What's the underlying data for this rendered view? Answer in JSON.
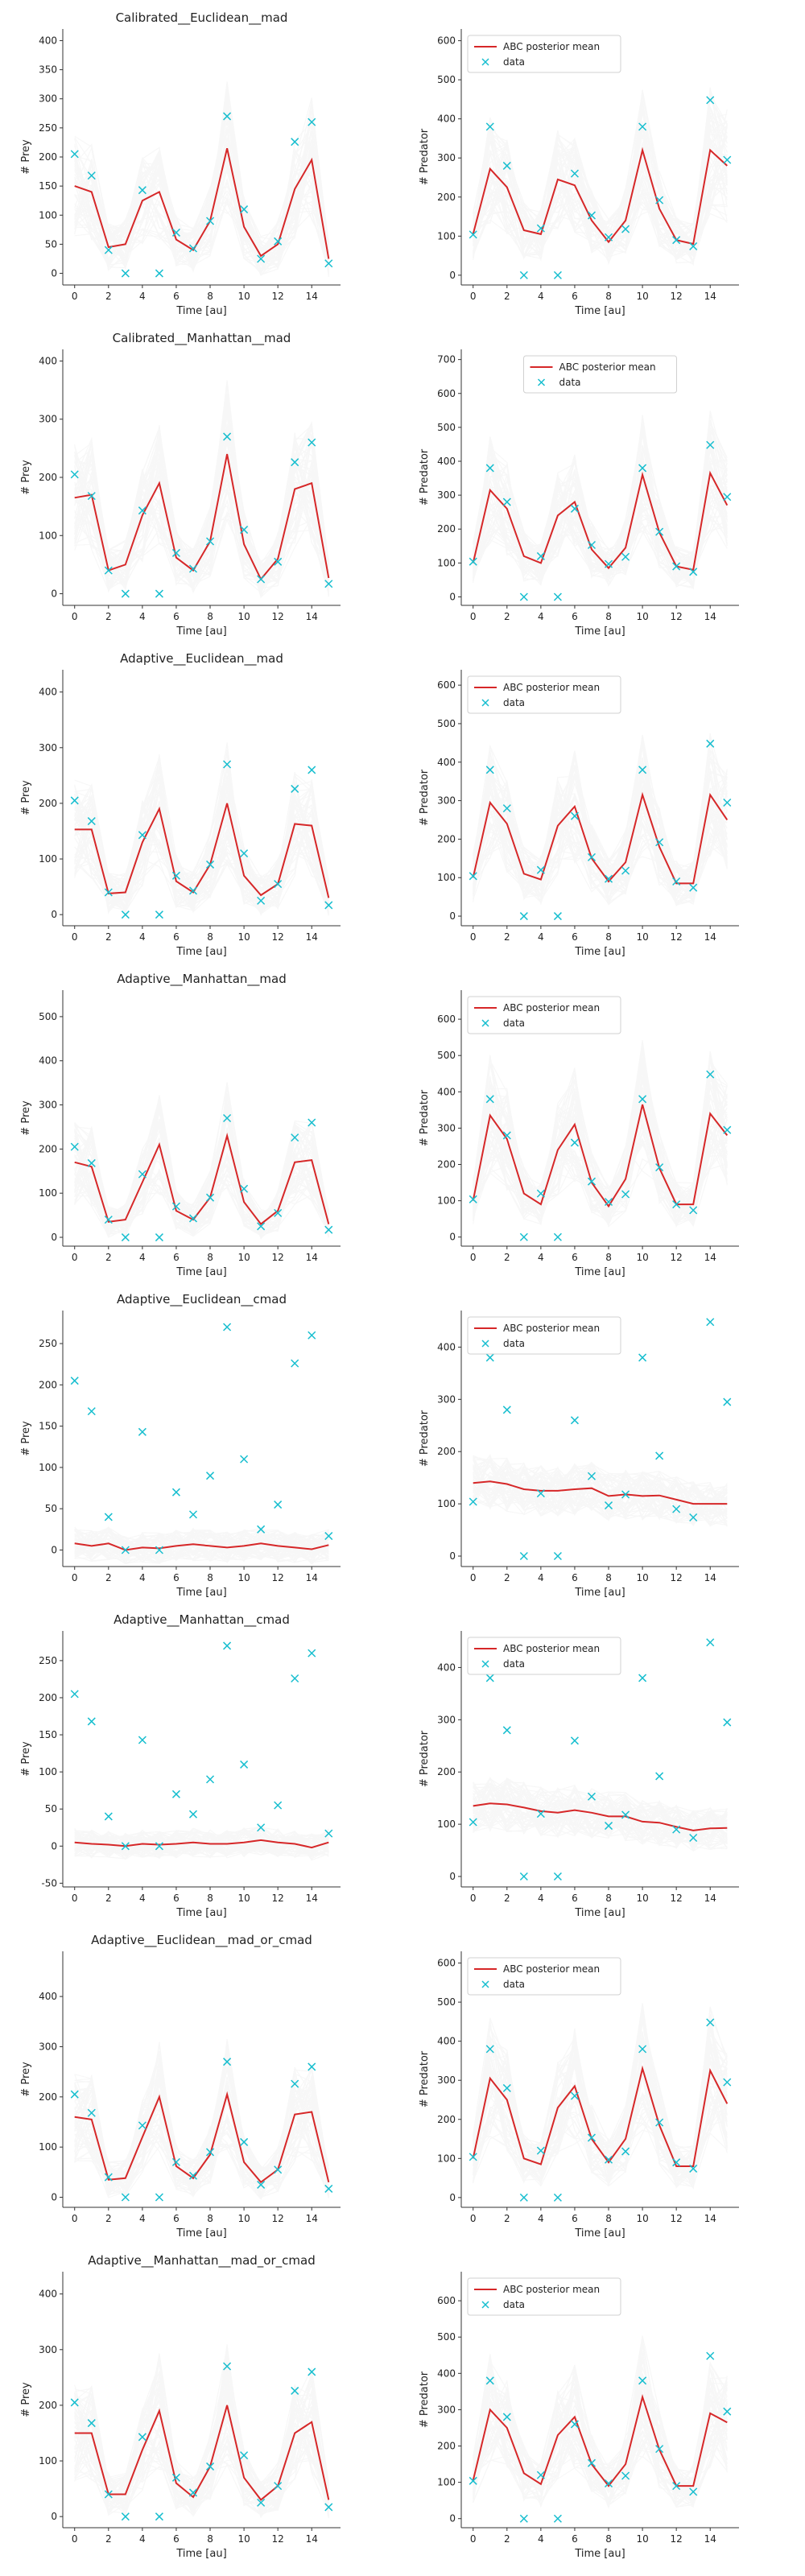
{
  "colors": {
    "mean": "#d62728",
    "data": "#17becf",
    "sim": "#999999",
    "axis": "#333333"
  },
  "legend": {
    "mean_label": "ABC posterior mean",
    "data_label": "data"
  },
  "observed": {
    "x": [
      0,
      1,
      2,
      3,
      4,
      5,
      6,
      7,
      8,
      9,
      10,
      11,
      12,
      13,
      14,
      15
    ],
    "prey": [
      205,
      168,
      40,
      0,
      143,
      0,
      70,
      43,
      90,
      270,
      110,
      25,
      55,
      226,
      260,
      17
    ],
    "predator": [
      104,
      380,
      280,
      0,
      120,
      0,
      260,
      153,
      97,
      118,
      380,
      192,
      90,
      74,
      448,
      295
    ]
  },
  "chart_data": [
    {
      "type": "line",
      "title": "Calibrated__Euclidean__mad",
      "xlabel": "Time [au]",
      "ylabel": "# Prey",
      "ylim": [
        -20,
        420
      ],
      "yticks": [
        0,
        50,
        100,
        150,
        200,
        250,
        300,
        350,
        400
      ],
      "xticks": [
        0,
        2,
        4,
        6,
        8,
        10,
        12,
        14
      ],
      "legend": false,
      "series": [
        {
          "name": "ABC posterior mean",
          "values": [
            150,
            140,
            45,
            50,
            125,
            140,
            58,
            40,
            90,
            215,
            80,
            30,
            50,
            145,
            195,
            25
          ]
        }
      ]
    },
    {
      "type": "line",
      "title": "",
      "xlabel": "Time [au]",
      "ylabel": "# Predator",
      "ylim": [
        -25,
        630
      ],
      "yticks": [
        0,
        100,
        200,
        300,
        400,
        500,
        600
      ],
      "xticks": [
        0,
        2,
        4,
        6,
        8,
        10,
        12,
        14
      ],
      "legend": true,
      "legend_position": "upper left",
      "series": [
        {
          "name": "ABC posterior mean",
          "values": [
            105,
            272,
            225,
            115,
            105,
            245,
            230,
            140,
            85,
            140,
            320,
            170,
            90,
            80,
            320,
            280
          ]
        }
      ]
    },
    {
      "type": "line",
      "title": "Calibrated__Manhattan__mad",
      "xlabel": "Time [au]",
      "ylabel": "# Prey",
      "ylim": [
        -20,
        420
      ],
      "yticks": [
        0,
        100,
        200,
        300,
        400
      ],
      "xticks": [
        0,
        2,
        4,
        6,
        8,
        10,
        12,
        14
      ],
      "legend": false,
      "series": [
        {
          "name": "ABC posterior mean",
          "values": [
            165,
            170,
            40,
            50,
            135,
            190,
            62,
            40,
            90,
            240,
            85,
            25,
            60,
            180,
            190,
            27
          ]
        }
      ]
    },
    {
      "type": "line",
      "title": "",
      "xlabel": "Time [au]",
      "ylabel": "# Predator",
      "ylim": [
        -25,
        730
      ],
      "yticks": [
        0,
        100,
        200,
        300,
        400,
        500,
        600,
        700
      ],
      "xticks": [
        0,
        2,
        4,
        6,
        8,
        10,
        12,
        14
      ],
      "legend": true,
      "legend_position": "upper center",
      "series": [
        {
          "name": "ABC posterior mean",
          "values": [
            100,
            315,
            260,
            120,
            100,
            240,
            280,
            140,
            85,
            145,
            360,
            190,
            90,
            80,
            365,
            270
          ]
        }
      ]
    },
    {
      "type": "line",
      "title": "Adaptive__Euclidean__mad",
      "xlabel": "Time [au]",
      "ylabel": "# Prey",
      "ylim": [
        -20,
        440
      ],
      "yticks": [
        0,
        100,
        200,
        300,
        400
      ],
      "xticks": [
        0,
        2,
        4,
        6,
        8,
        10,
        12,
        14
      ],
      "legend": false,
      "series": [
        {
          "name": "ABC posterior mean",
          "values": [
            153,
            153,
            38,
            40,
            130,
            190,
            60,
            40,
            90,
            200,
            70,
            35,
            55,
            163,
            160,
            30
          ]
        }
      ]
    },
    {
      "type": "line",
      "title": "",
      "xlabel": "Time [au]",
      "ylabel": "# Predator",
      "ylim": [
        -25,
        640
      ],
      "yticks": [
        0,
        100,
        200,
        300,
        400,
        500,
        600
      ],
      "xticks": [
        0,
        2,
        4,
        6,
        8,
        10,
        12,
        14
      ],
      "legend": true,
      "legend_position": "upper left",
      "series": [
        {
          "name": "ABC posterior mean",
          "values": [
            100,
            295,
            240,
            110,
            95,
            235,
            285,
            150,
            90,
            140,
            315,
            180,
            85,
            85,
            315,
            250
          ]
        }
      ]
    },
    {
      "type": "line",
      "title": "Adaptive__Manhattan__mad",
      "xlabel": "Time [au]",
      "ylabel": "# Prey",
      "ylim": [
        -20,
        560
      ],
      "yticks": [
        0,
        100,
        200,
        300,
        400,
        500
      ],
      "xticks": [
        0,
        2,
        4,
        6,
        8,
        10,
        12,
        14
      ],
      "legend": false,
      "series": [
        {
          "name": "ABC posterior mean",
          "values": [
            170,
            160,
            35,
            40,
            125,
            210,
            60,
            40,
            90,
            230,
            80,
            30,
            60,
            170,
            175,
            30
          ]
        }
      ]
    },
    {
      "type": "line",
      "title": "",
      "xlabel": "Time [au]",
      "ylabel": "# Predator",
      "ylim": [
        -25,
        680
      ],
      "yticks": [
        0,
        100,
        200,
        300,
        400,
        500,
        600
      ],
      "xticks": [
        0,
        2,
        4,
        6,
        8,
        10,
        12,
        14
      ],
      "legend": true,
      "legend_position": "upper left",
      "series": [
        {
          "name": "ABC posterior mean",
          "values": [
            100,
            335,
            270,
            120,
            90,
            240,
            310,
            150,
            85,
            160,
            365,
            190,
            90,
            90,
            340,
            280
          ]
        }
      ]
    },
    {
      "type": "line",
      "title": "Adaptive__Euclidean__cmad",
      "xlabel": "Time [au]",
      "ylabel": "# Prey",
      "ylim": [
        -20,
        290
      ],
      "yticks": [
        0,
        50,
        100,
        150,
        200,
        250
      ],
      "xticks": [
        0,
        2,
        4,
        6,
        8,
        10,
        12,
        14
      ],
      "legend": false,
      "series": [
        {
          "name": "ABC posterior mean",
          "values": [
            8,
            5,
            8,
            0,
            3,
            2,
            5,
            7,
            5,
            3,
            5,
            8,
            5,
            3,
            1,
            6
          ]
        }
      ]
    },
    {
      "type": "line",
      "title": "",
      "xlabel": "Time [au]",
      "ylabel": "# Predator",
      "ylim": [
        -20,
        470
      ],
      "yticks": [
        0,
        100,
        200,
        300,
        400
      ],
      "xticks": [
        0,
        2,
        4,
        6,
        8,
        10,
        12,
        14
      ],
      "legend": true,
      "legend_position": "upper left",
      "series": [
        {
          "name": "ABC posterior mean",
          "values": [
            140,
            143,
            138,
            128,
            125,
            125,
            128,
            130,
            115,
            118,
            115,
            116,
            108,
            100,
            100,
            100
          ]
        }
      ]
    },
    {
      "type": "line",
      "title": "Adaptive__Manhattan__cmad",
      "xlabel": "Time [au]",
      "ylabel": "# Prey",
      "ylim": [
        -55,
        290
      ],
      "yticks": [
        -50,
        0,
        50,
        100,
        150,
        200,
        250
      ],
      "xticks": [
        0,
        2,
        4,
        6,
        8,
        10,
        12,
        14
      ],
      "legend": false,
      "series": [
        {
          "name": "ABC posterior mean",
          "values": [
            5,
            3,
            2,
            0,
            3,
            2,
            3,
            5,
            3,
            3,
            5,
            8,
            5,
            3,
            -2,
            5
          ]
        }
      ]
    },
    {
      "type": "line",
      "title": "",
      "xlabel": "Time [au]",
      "ylabel": "# Predator",
      "ylim": [
        -20,
        470
      ],
      "yticks": [
        0,
        100,
        200,
        300,
        400
      ],
      "xticks": [
        0,
        2,
        4,
        6,
        8,
        10,
        12,
        14
      ],
      "legend": true,
      "legend_position": "upper left",
      "series": [
        {
          "name": "ABC posterior mean",
          "values": [
            135,
            140,
            138,
            132,
            125,
            122,
            127,
            122,
            115,
            115,
            105,
            103,
            95,
            88,
            92,
            93
          ]
        }
      ]
    },
    {
      "type": "line",
      "title": "Adaptive__Euclidean__mad_or_cmad",
      "xlabel": "Time [au]",
      "ylabel": "# Prey",
      "ylim": [
        -20,
        490
      ],
      "yticks": [
        0,
        100,
        200,
        300,
        400
      ],
      "xticks": [
        0,
        2,
        4,
        6,
        8,
        10,
        12,
        14
      ],
      "legend": false,
      "series": [
        {
          "name": "ABC posterior mean",
          "values": [
            160,
            155,
            35,
            38,
            120,
            200,
            62,
            38,
            85,
            205,
            70,
            30,
            55,
            165,
            170,
            30
          ]
        }
      ]
    },
    {
      "type": "line",
      "title": "",
      "xlabel": "Time [au]",
      "ylabel": "# Predator",
      "ylim": [
        -25,
        630
      ],
      "yticks": [
        0,
        100,
        200,
        300,
        400,
        500,
        600
      ],
      "xticks": [
        0,
        2,
        4,
        6,
        8,
        10,
        12,
        14
      ],
      "legend": true,
      "legend_position": "upper left",
      "series": [
        {
          "name": "ABC posterior mean",
          "values": [
            100,
            305,
            250,
            100,
            85,
            230,
            285,
            150,
            90,
            150,
            330,
            185,
            80,
            80,
            325,
            240
          ]
        }
      ]
    },
    {
      "type": "line",
      "title": "Adaptive__Manhattan__mad_or_cmad",
      "xlabel": "Time [au]",
      "ylabel": "# Prey",
      "ylim": [
        -20,
        440
      ],
      "yticks": [
        0,
        100,
        200,
        300,
        400
      ],
      "xticks": [
        0,
        2,
        4,
        6,
        8,
        10,
        12,
        14
      ],
      "legend": false,
      "series": [
        {
          "name": "ABC posterior mean",
          "values": [
            150,
            150,
            40,
            40,
            120,
            190,
            60,
            35,
            90,
            200,
            70,
            30,
            55,
            150,
            170,
            30
          ]
        }
      ]
    },
    {
      "type": "line",
      "title": "",
      "xlabel": "Time [au]",
      "ylabel": "# Predator",
      "ylim": [
        -25,
        680
      ],
      "yticks": [
        0,
        100,
        200,
        300,
        400,
        500,
        600
      ],
      "xticks": [
        0,
        2,
        4,
        6,
        8,
        10,
        12,
        14
      ],
      "legend": true,
      "legend_position": "upper left",
      "series": [
        {
          "name": "ABC posterior mean",
          "values": [
            105,
            300,
            250,
            125,
            95,
            230,
            280,
            150,
            90,
            150,
            335,
            190,
            90,
            90,
            290,
            265
          ]
        }
      ]
    }
  ]
}
